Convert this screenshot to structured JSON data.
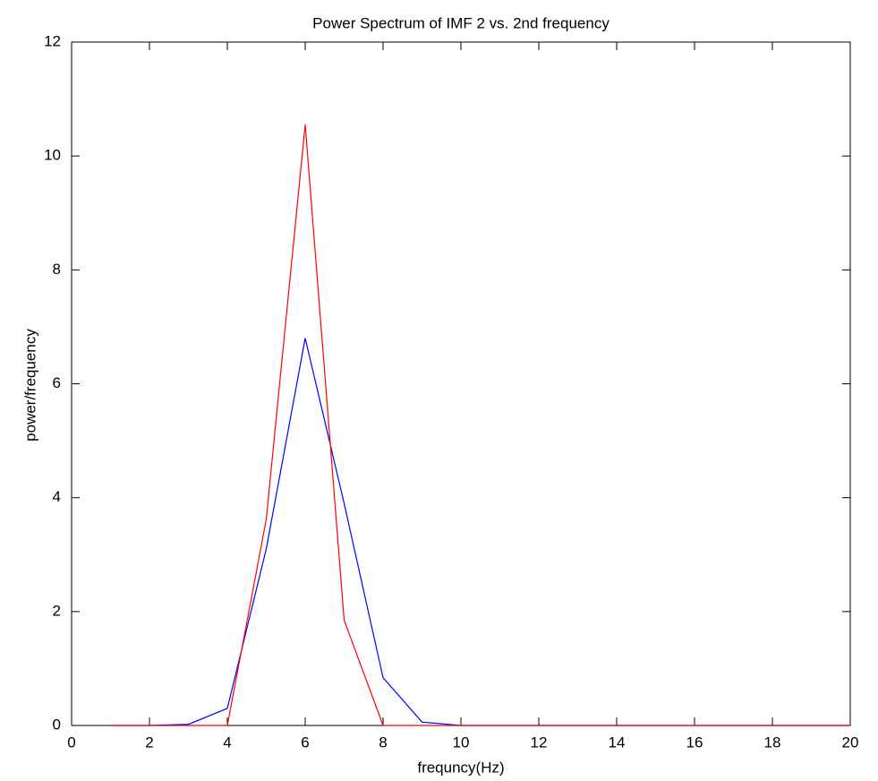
{
  "chart_data": {
    "type": "line",
    "title": "Power Spectrum of IMF 2 vs. 2nd frequency",
    "x_label": "frequncy(Hz)",
    "y_label": "power/frequency",
    "x": [
      1,
      2,
      3,
      4,
      5,
      6,
      7,
      8,
      9,
      10,
      11,
      12,
      13,
      14,
      15,
      16,
      17,
      18,
      19,
      20
    ],
    "series": [
      {
        "color": "#0000ff",
        "values": [
          0,
          0,
          0.02,
          0.3,
          3.1,
          6.8,
          3.9,
          0.84,
          0.06,
          0,
          0,
          0,
          0,
          0,
          0,
          0,
          0,
          0,
          0,
          0
        ]
      },
      {
        "color": "#ff0000",
        "values": [
          0,
          0,
          0,
          0,
          3.62,
          10.55,
          1.85,
          0,
          0,
          0,
          0,
          0,
          0,
          0,
          0,
          0,
          0,
          0,
          0,
          0
        ]
      }
    ],
    "xlim": [
      0,
      20
    ],
    "xticks": [
      0,
      2,
      4,
      6,
      8,
      10,
      12,
      14,
      16,
      18,
      20
    ],
    "ylim": [
      0,
      12
    ],
    "yticks": [
      0,
      2,
      4,
      6,
      8,
      10,
      12
    ],
    "grid": false
  }
}
